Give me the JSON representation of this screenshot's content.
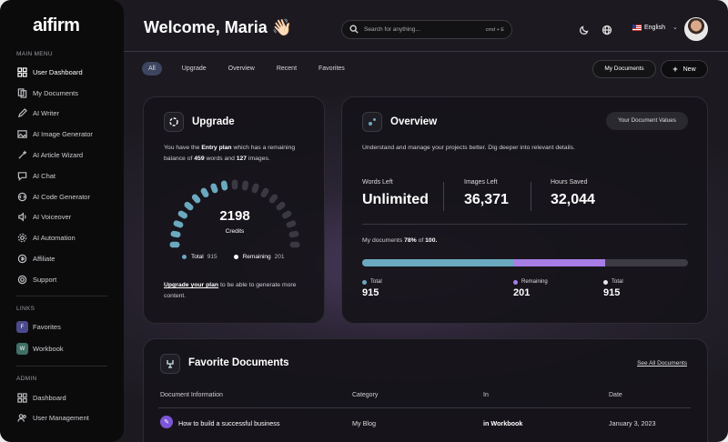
{
  "sidebar": {
    "logo": "aifirm",
    "main_menu_title": "MAIN MENU",
    "main_menu": [
      {
        "label": "User Dashboard",
        "icon": "dashboard-icon",
        "active": true
      },
      {
        "label": "My Documents",
        "icon": "documents-icon"
      },
      {
        "label": "AI Writer",
        "icon": "writer-icon"
      },
      {
        "label": "AI Image Generator",
        "icon": "image-icon"
      },
      {
        "label": "AI Article Wizard",
        "icon": "wizard-icon"
      },
      {
        "label": "AI Chat",
        "icon": "chat-icon"
      },
      {
        "label": "AI Code Generator",
        "icon": "code-icon"
      },
      {
        "label": "AI Voiceover",
        "icon": "voiceover-icon"
      },
      {
        "label": "AI Automation",
        "icon": "automation-icon"
      },
      {
        "label": "Affiliate",
        "icon": "affiliate-icon"
      },
      {
        "label": "Support",
        "icon": "support-icon"
      }
    ],
    "links_title": "LINKS",
    "links": [
      {
        "badge": "F",
        "label": "Favorites",
        "color": "#4b4a8c"
      },
      {
        "badge": "W",
        "label": "Workbook",
        "color": "#3f6f66"
      }
    ],
    "admin_title": "ADMIN",
    "admin": [
      {
        "label": "Dashboard",
        "icon": "dashboard-icon"
      },
      {
        "label": "User Management",
        "icon": "users-icon"
      }
    ]
  },
  "header": {
    "welcome": "Welcome, Maria 👋🏻",
    "search_placeholder": "Search for anything...",
    "search_shortcut": "cmd + E",
    "language": "English"
  },
  "tabs": [
    "All",
    "Upgrade",
    "Overview",
    "Recent",
    "Favorites"
  ],
  "actions": {
    "my_documents": "My Documents",
    "new": "New"
  },
  "upgrade": {
    "title": "Upgrade",
    "text_pre": "You have the ",
    "plan": "Entry plan",
    "text_mid": " which has a remaining balance of ",
    "words": "459",
    "text_words": " words and ",
    "images": "127",
    "text_images": " images.",
    "credits": "2198",
    "credits_label": "Credits",
    "gauge_fraction": 0.45,
    "legend_total_label": "Total",
    "legend_total": "915",
    "legend_remaining_label": "Remaining",
    "legend_remaining": "201",
    "link": "Upgrade your plan",
    "footer": " to be able to generate more content."
  },
  "overview": {
    "title": "Overview",
    "button": "Your Document Values",
    "description": "Understand and manage your projects better. Dig deeper into relevant details.",
    "stats": [
      {
        "label": "Words Left",
        "value": "Unlimited"
      },
      {
        "label": "Images Left",
        "value": "36,371"
      },
      {
        "label": "Hours Saved",
        "value": "32,044"
      }
    ],
    "docs_pre": "My documents ",
    "docs_pct": "78%",
    "docs_mid": " of ",
    "docs_total": "100.",
    "progress": [
      {
        "label": "Total",
        "value": "915",
        "color": "#6aa9bf",
        "fraction": 0.465
      },
      {
        "label": "Remaining",
        "value": "201",
        "color": "#a77ee6",
        "fraction": 0.28
      },
      {
        "label": "Total",
        "value": "915",
        "color": "#e8e8ea"
      }
    ]
  },
  "favorites": {
    "title": "Favorite Documents",
    "see_all": "See All Documents",
    "columns": [
      "Document Information",
      "Category",
      "In",
      "Date"
    ],
    "rows": [
      {
        "name": "How to build a successful business",
        "category": "My Blog",
        "in": "in Workbook",
        "date": "January 3, 2023"
      }
    ]
  },
  "colors": {
    "accent_teal": "#6aa9bf",
    "accent_purple": "#a77ee6"
  }
}
